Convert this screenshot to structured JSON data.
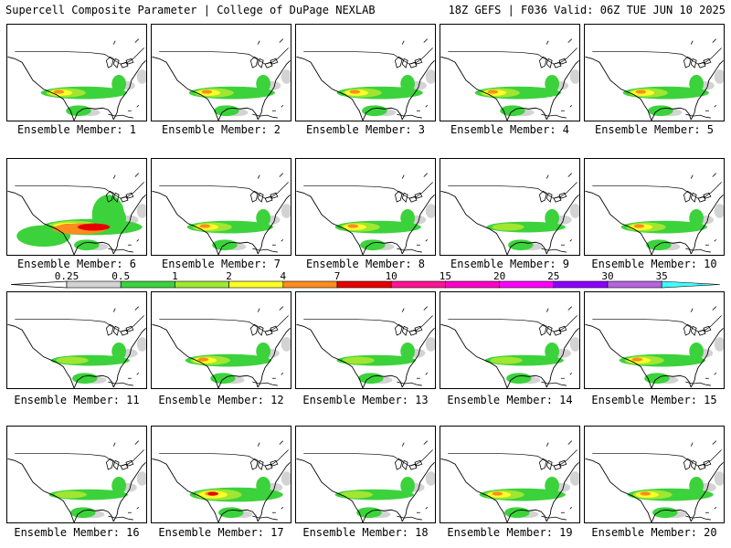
{
  "header": {
    "title_left": "Supercell Composite Parameter | College of DuPage NEXLAB",
    "title_right": "18Z GEFS | F036 Valid: 06Z TUE JUN 10 2025"
  },
  "panels": [
    {
      "label": "Ensemble Member: 1",
      "intensity": 2
    },
    {
      "label": "Ensemble Member: 2",
      "intensity": 2
    },
    {
      "label": "Ensemble Member: 3",
      "intensity": 2
    },
    {
      "label": "Ensemble Member: 4",
      "intensity": 2
    },
    {
      "label": "Ensemble Member: 5",
      "intensity": 2
    },
    {
      "label": "Ensemble Member: 6",
      "intensity": 4
    },
    {
      "label": "Ensemble Member: 7",
      "intensity": 2
    },
    {
      "label": "Ensemble Member: 8",
      "intensity": 2
    },
    {
      "label": "Ensemble Member: 9",
      "intensity": 1
    },
    {
      "label": "Ensemble Member: 10",
      "intensity": 2
    },
    {
      "label": "Ensemble Member: 11",
      "intensity": 1
    },
    {
      "label": "Ensemble Member: 12",
      "intensity": 2
    },
    {
      "label": "Ensemble Member: 13",
      "intensity": 1
    },
    {
      "label": "Ensemble Member: 14",
      "intensity": 1
    },
    {
      "label": "Ensemble Member: 15",
      "intensity": 2
    },
    {
      "label": "Ensemble Member: 16",
      "intensity": 1
    },
    {
      "label": "Ensemble Member: 17",
      "intensity": 3
    },
    {
      "label": "Ensemble Member: 18",
      "intensity": 1
    },
    {
      "label": "Ensemble Member: 19",
      "intensity": 2
    },
    {
      "label": "Ensemble Member: 20",
      "intensity": 2
    }
  ],
  "colorbar": {
    "ticks": [
      "0.25",
      "0.5",
      "1",
      "2",
      "4",
      "7",
      "10",
      "15",
      "20",
      "25",
      "30",
      "35"
    ],
    "colors": [
      "#d3d3d3",
      "#3cd23c",
      "#a0e632",
      "#ffff28",
      "#ff8c1e",
      "#e60000",
      "#ff1493",
      "#ff00c8",
      "#ff00ff",
      "#8c00ff",
      "#b464dc",
      "#40ffff"
    ]
  }
}
